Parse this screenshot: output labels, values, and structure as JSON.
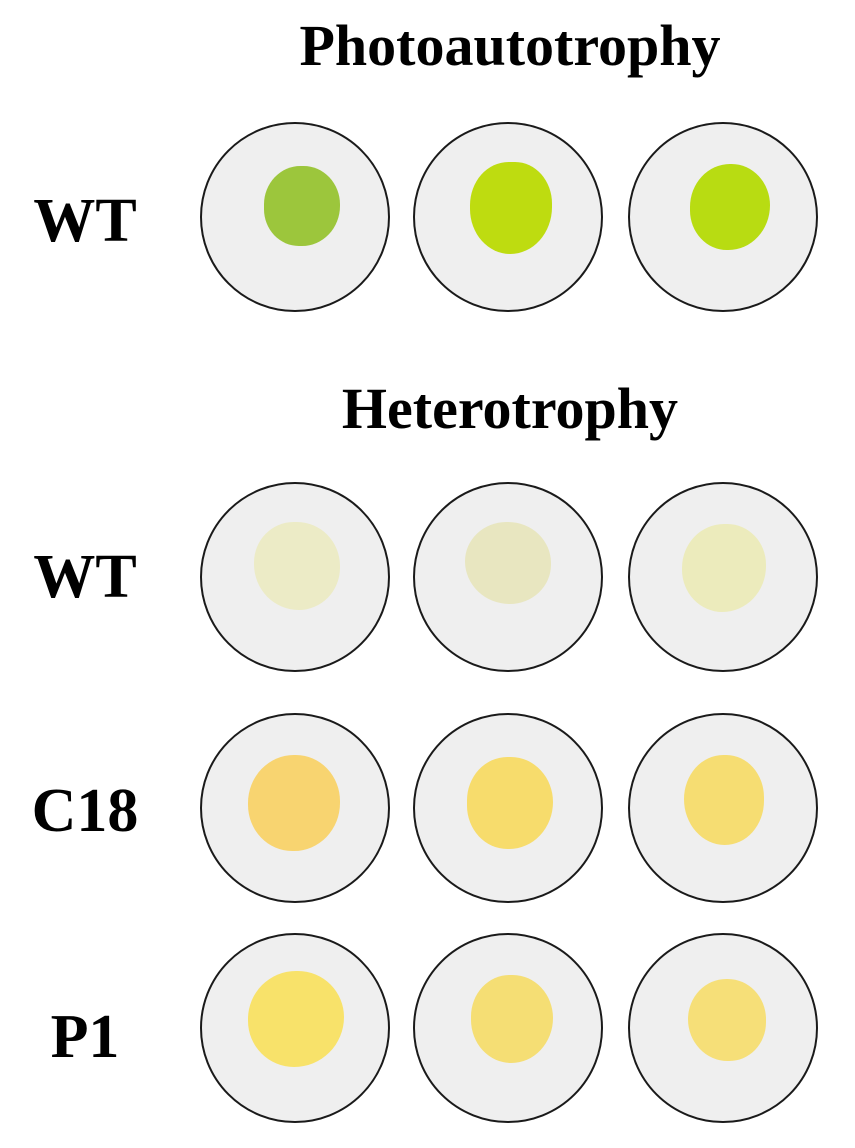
{
  "sections": [
    {
      "title": "Photoautotrophy"
    },
    {
      "title": "Heterotrophy"
    }
  ],
  "rows": [
    {
      "label": "WT",
      "dishes": [
        {
          "colony_color": "#9cc63c"
        },
        {
          "colony_color": "#bedc10"
        },
        {
          "colony_color": "#b8dc12"
        }
      ]
    },
    {
      "label": "WT",
      "dishes": [
        {
          "colony_color": "#ecebc6"
        },
        {
          "colony_color": "#e8e6c0"
        },
        {
          "colony_color": "#ecebbc"
        }
      ]
    },
    {
      "label": "C18",
      "dishes": [
        {
          "colony_color": "#f8d470"
        },
        {
          "colony_color": "#f7dc6c"
        },
        {
          "colony_color": "#f6dd72"
        }
      ]
    },
    {
      "label": "P1",
      "dishes": [
        {
          "colony_color": "#f8e26a"
        },
        {
          "colony_color": "#f5de74"
        },
        {
          "colony_color": "#f6df78"
        }
      ]
    }
  ],
  "colors": {
    "dish_background": "#efefef",
    "dish_border": "#1a1a1a"
  }
}
